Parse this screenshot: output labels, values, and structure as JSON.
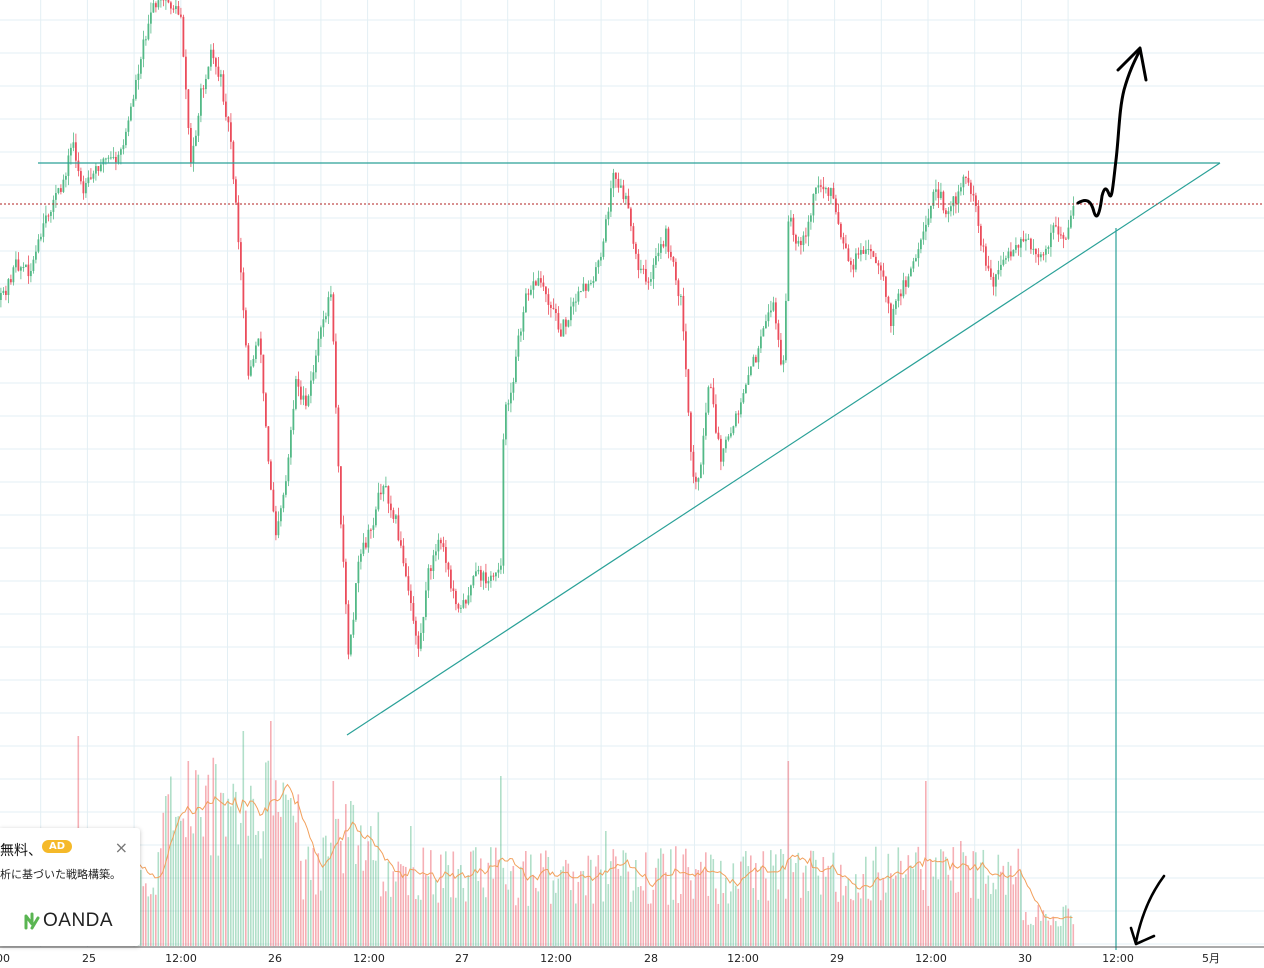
{
  "chart_data": {
    "type": "candlestick",
    "x_tick_labels": [
      "00",
      "25",
      "12:00",
      "26",
      "12:00",
      "27",
      "12:00",
      "28",
      "12:00",
      "29",
      "12:00",
      "30",
      "12:00",
      "5月"
    ],
    "colors": {
      "up": "#53b987",
      "down": "#eb4d5c",
      "trendline": "#2aa198",
      "price_line": "#b22222",
      "volume_ma": "#f2a05c",
      "grid": "#e3eff4",
      "annotation": "#000000"
    },
    "drawings": [
      {
        "type": "horizontal-resistance-line"
      },
      {
        "type": "ascending-support-line"
      },
      {
        "type": "vertical-line"
      },
      {
        "type": "current-price-line",
        "style": "dotted"
      }
    ],
    "annotations": [
      {
        "type": "hand-drawn-arrow",
        "direction": "up"
      },
      {
        "type": "hand-drawn-arrow",
        "direction": "down"
      }
    ],
    "grid": true,
    "has_volume_pane": true
  },
  "ad": {
    "title": "無料、",
    "badge": "AD",
    "subtitle": "析に基づいた戦略構築。",
    "close": "×",
    "logo_text": "OANDA",
    "logo_icon": "oanda-logo-icon"
  }
}
